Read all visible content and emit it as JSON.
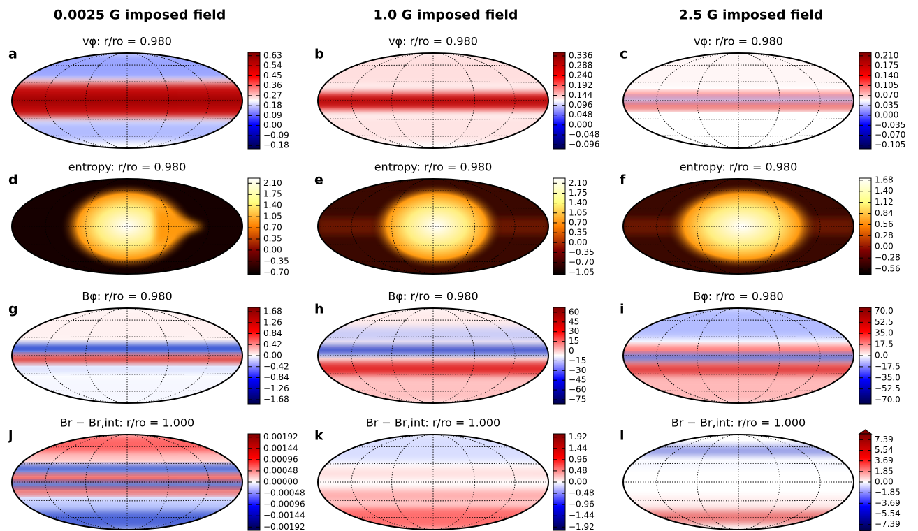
{
  "figure": {
    "column_titles": [
      "0.0025 G imposed field",
      "1.0 G imposed field",
      "2.5 G imposed field"
    ],
    "panels": [
      {
        "label": "a",
        "title": "vφ: r/ro = 0.980",
        "cmap": "seismic",
        "clim": [
          -0.21,
          0.66
        ],
        "ticks": [
          0.63,
          0.54,
          0.45,
          0.36,
          0.27,
          0.18,
          0.09,
          {
            "value": 0,
            "label": "0.00"
          },
          {
            "value": -0.09,
            "label": "−0.09"
          },
          {
            "value": -0.18,
            "label": "−0.18"
          }
        ]
      },
      {
        "label": "b",
        "title": "vφ: r/ro = 0.980",
        "cmap": "seismic",
        "clim": [
          -0.116,
          0.353
        ],
        "ticks": [
          0.336,
          0.288,
          {
            "value": 0.24,
            "label": "0.240"
          },
          0.192,
          0.144,
          0.096,
          0.048,
          {
            "value": 0,
            "label": "0.000"
          },
          {
            "value": -0.048,
            "label": "−0.048"
          },
          {
            "value": -0.096,
            "label": "−0.096"
          }
        ]
      },
      {
        "label": "c",
        "title": "vφ: r/ro = 0.980",
        "cmap": "seismic",
        "clim": [
          -0.118,
          0.222
        ],
        "ticks": [
          {
            "value": 0.21,
            "label": "0.210"
          },
          0.175,
          {
            "value": 0.14,
            "label": "0.140"
          },
          0.105,
          {
            "value": 0.07,
            "label": "0.070"
          },
          0.035,
          {
            "value": 0,
            "label": "0.000"
          },
          {
            "value": -0.035,
            "label": "−0.035"
          },
          {
            "value": -0.07,
            "label": "−0.070"
          },
          {
            "value": -0.105,
            "label": "−0.105"
          }
        ]
      },
      {
        "label": "d",
        "title": "entropy: r/ro = 0.980",
        "cmap": "afmhot",
        "clim": [
          -0.77,
          2.26
        ],
        "ticks": [
          {
            "value": 2.1,
            "label": "2.10"
          },
          1.75,
          {
            "value": 1.4,
            "label": "1.40"
          },
          1.05,
          {
            "value": 0.7,
            "label": "0.70"
          },
          0.35,
          {
            "value": 0,
            "label": "0.00"
          },
          {
            "value": -0.35,
            "label": "−0.35"
          },
          {
            "value": -0.7,
            "label": "−0.70"
          }
        ]
      },
      {
        "label": "e",
        "title": "entropy: r/ro = 0.980",
        "cmap": "afmhot",
        "clim": [
          -1.13,
          2.28
        ],
        "ticks": [
          {
            "value": 2.1,
            "label": "2.10"
          },
          1.75,
          {
            "value": 1.4,
            "label": "1.40"
          },
          1.05,
          {
            "value": 0.7,
            "label": "0.70"
          },
          0.35,
          {
            "value": 0,
            "label": "0.00"
          },
          {
            "value": -0.35,
            "label": "−0.35"
          },
          {
            "value": -0.7,
            "label": "−0.70"
          },
          {
            "value": -1.05,
            "label": "−1.05"
          }
        ]
      },
      {
        "label": "f",
        "title": "entropy: r/ro = 0.980",
        "cmap": "afmhot",
        "clim": [
          -0.7,
          1.73
        ],
        "ticks": [
          1.68,
          {
            "value": 1.4,
            "label": "1.40"
          },
          1.12,
          0.84,
          0.56,
          0.28,
          {
            "value": 0,
            "label": "0.00"
          },
          {
            "value": -0.28,
            "label": "−0.28"
          },
          {
            "value": -0.56,
            "label": "−0.56"
          }
        ]
      },
      {
        "label": "g",
        "title": "Bφ: r/ro = 0.980",
        "cmap": "seismic",
        "clim": [
          -1.84,
          1.84
        ],
        "ticks": [
          1.68,
          1.26,
          0.84,
          0.42,
          {
            "value": 0,
            "label": "0.00"
          },
          {
            "value": -0.42,
            "label": "−0.42"
          },
          {
            "value": -0.84,
            "label": "−0.84"
          },
          {
            "value": -1.26,
            "label": "−1.26"
          },
          {
            "value": -1.68,
            "label": "−1.68"
          }
        ]
      },
      {
        "label": "h",
        "title": "Bφ: r/ro = 0.980",
        "cmap": "seismic",
        "clim": [
          -81.5,
          67.5
        ],
        "ticks": [
          60,
          45,
          30,
          15,
          0,
          {
            "value": -15,
            "label": "−15"
          },
          {
            "value": -30,
            "label": "−30"
          },
          {
            "value": -45,
            "label": "−45"
          },
          {
            "value": -60,
            "label": "−60"
          },
          {
            "value": -75,
            "label": "−75"
          }
        ]
      },
      {
        "label": "i",
        "title": "Bφ: r/ro = 0.980",
        "cmap": "seismic",
        "clim": [
          -76,
          76
        ],
        "ticks": [
          {
            "value": 70,
            "label": "70.0"
          },
          52.5,
          {
            "value": 35,
            "label": "35.0"
          },
          17.5,
          {
            "value": 0,
            "label": "0.0"
          },
          {
            "value": -17.5,
            "label": "−17.5"
          },
          {
            "value": -35,
            "label": "−35.0"
          },
          {
            "value": -52.5,
            "label": "−52.5"
          },
          {
            "value": -70,
            "label": "−70.0"
          }
        ]
      },
      {
        "label": "j",
        "title": "Br − Br,int: r/ro = 1.000",
        "cmap": "seismic",
        "clim": [
          -0.00206,
          0.00206
        ],
        "ticks": [
          0.00192,
          0.00144,
          0.00096,
          0.00048,
          {
            "value": 0,
            "label": "0.00000"
          },
          {
            "value": -0.00048,
            "label": "−0.00048"
          },
          {
            "value": -0.00096,
            "label": "−0.00096"
          },
          {
            "value": -0.00144,
            "label": "−0.00144"
          },
          {
            "value": -0.00192,
            "label": "−0.00192"
          }
        ]
      },
      {
        "label": "k",
        "title": "Br − Br,int: r/ro = 1.000",
        "cmap": "seismic",
        "clim": [
          -2.06,
          2.06
        ],
        "ticks": [
          1.92,
          1.44,
          0.96,
          0.48,
          {
            "value": 0,
            "label": "0.00"
          },
          {
            "value": -0.48,
            "label": "−0.48"
          },
          {
            "value": -0.96,
            "label": "−0.96"
          },
          {
            "value": -1.44,
            "label": "−1.44"
          },
          {
            "value": -1.92,
            "label": "−1.92"
          }
        ]
      },
      {
        "label": "l",
        "title": "Br − Br,int: r/ro = 1.000",
        "cmap": "seismic",
        "clim": [
          -8.4,
          8.4
        ],
        "ticks": [
          7.39,
          5.54,
          3.69,
          1.85,
          {
            "value": 0,
            "label": "0.00"
          },
          {
            "value": -1.85,
            "label": "−1.85"
          },
          {
            "value": -3.69,
            "label": "−3.69"
          },
          {
            "value": -5.54,
            "label": "−5.54"
          },
          {
            "value": -7.39,
            "label": "−7.39"
          }
        ]
      }
    ]
  }
}
